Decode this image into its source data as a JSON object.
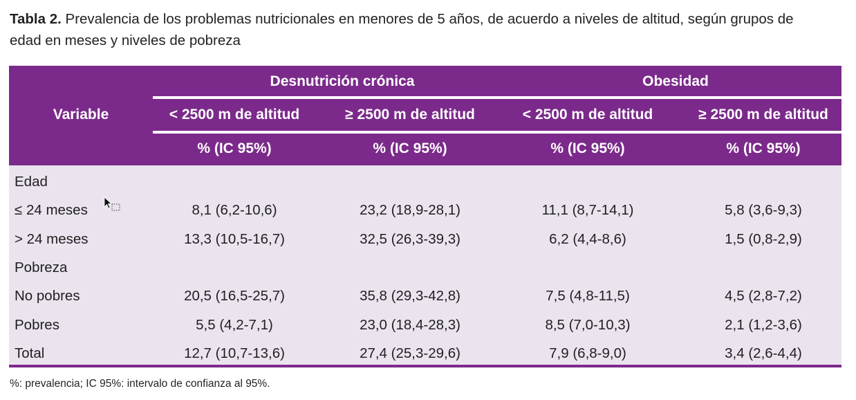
{
  "caption": {
    "label": "Tabla 2.",
    "text": " Prevalencia de los problemas nutricionales en menores de 5 años, de acuerdo a niveles de altitud, según grupos de edad en meses y niveles de pobreza"
  },
  "header": {
    "variable": "Variable",
    "groups": [
      "Desnutrición crónica",
      "Obesidad"
    ],
    "altitudes": [
      "< 2500 m de altitud",
      "≥ 2500 m de altitud",
      "< 2500 m de altitud",
      "≥ 2500 m de altitud"
    ],
    "units": [
      "% (IC 95%)",
      "% (IC 95%)",
      "% (IC 95%)",
      "% (IC 95%)"
    ]
  },
  "rows": [
    {
      "label": "Edad",
      "values": [
        "",
        "",
        "",
        ""
      ]
    },
    {
      "label": "≤ 24 meses",
      "values": [
        "8,1 (6,2-10,6)",
        "23,2 (18,9-28,1)",
        "11,1 (8,7-14,1)",
        "5,8 (3,6-9,3)"
      ]
    },
    {
      "label": "> 24 meses",
      "values": [
        "13,3 (10,5-16,7)",
        "32,5 (26,3-39,3)",
        "6,2 (4,4-8,6)",
        "1,5 (0,8-2,9)"
      ]
    },
    {
      "label": "Pobreza",
      "values": [
        "",
        "",
        "",
        ""
      ]
    },
    {
      "label": "No pobres",
      "values": [
        "20,5 (16,5-25,7)",
        "35,8 (29,3-42,8)",
        "7,5 (4,8-11,5)",
        "4,5 (2,8-7,2)"
      ]
    },
    {
      "label": "Pobres",
      "values": [
        "5,5 (4,2-7,1)",
        "23,0 (18,4-28,3)",
        "8,5 (7,0-10,3)",
        "2,1 (1,2-3,6)"
      ]
    },
    {
      "label": "Total",
      "values": [
        "12,7 (10,7-13,6)",
        "27,4 (25,3-29,6)",
        "7,9 (6,8-9,0)",
        "3,4 (2,6-4,4)"
      ]
    }
  ],
  "footnote": "%: prevalencia; IC 95%: intervalo de confianza al 95%.",
  "colors": {
    "header_bg": "#7b2a8b",
    "body_bg": "#ebe4ef",
    "header_text": "#ffffff"
  }
}
